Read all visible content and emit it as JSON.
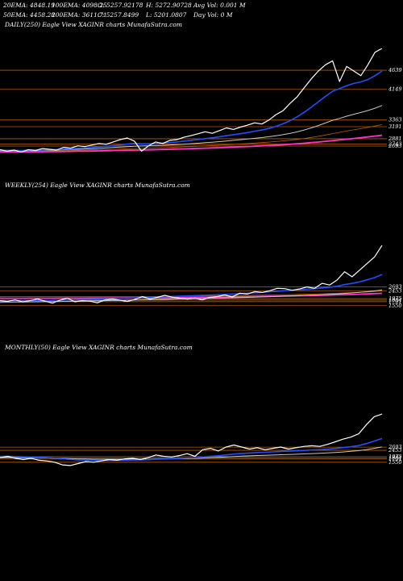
{
  "header": {
    "row1": [
      {
        "text": "20EMA: 4848.19"
      },
      {
        "text": "100EMA: 4098.25"
      },
      {
        "text": "O: 5257.92178"
      },
      {
        "text": "H: 5272.90728"
      },
      {
        "text": "Avg Vol: 0.001 M"
      }
    ],
    "row2": [
      {
        "text": "50EMA: 4458.28"
      },
      {
        "text": "200EMA: 3611.71"
      },
      {
        "text": "C: 5257.8499"
      },
      {
        "text": "L: 5201.0807"
      },
      {
        "text": "Day Vol: 0  M"
      }
    ]
  },
  "colors": {
    "background": "#000000",
    "price": "#ffffff",
    "ema20": "#1e50ff",
    "ema50": "#c8c8c8",
    "ema100": "#c06000",
    "ema200": "#ff33cc",
    "level": "#b85c00"
  },
  "chart_data": [
    {
      "type": "line",
      "title": "DAILY(250) Eagle   View  XAGINR charts MunafaSutra.com",
      "levels": [
        {
          "value": 4639,
          "label": "4639"
        },
        {
          "value": 4149,
          "label": "4149"
        },
        {
          "value": 3363,
          "label": "3363"
        },
        {
          "value": 3191,
          "label": "3191"
        },
        {
          "value": 2881,
          "label": "2881"
        },
        {
          "value": 2743,
          "label": "2743"
        },
        {
          "value": 2693,
          "label": "2693"
        }
      ],
      "ylim": [
        2300,
        5200
      ],
      "series": [
        {
          "key": "price",
          "values": [
            2600,
            2560,
            2590,
            2540,
            2600,
            2580,
            2630,
            2610,
            2590,
            2660,
            2640,
            2700,
            2680,
            2720,
            2760,
            2740,
            2800,
            2860,
            2900,
            2820,
            2560,
            2700,
            2800,
            2760,
            2840,
            2860,
            2920,
            2960,
            3010,
            3060,
            3020,
            3090,
            3160,
            3120,
            3180,
            3230,
            3290,
            3260,
            3360,
            3500,
            3600,
            3790,
            3960,
            4190,
            4420,
            4620,
            4780,
            4880,
            4350,
            4740,
            4620,
            4500,
            4780,
            5100,
            5200
          ]
        },
        {
          "key": "ema20",
          "values": [
            2590,
            2585,
            2585,
            2580,
            2585,
            2590,
            2595,
            2600,
            2605,
            2615,
            2625,
            2635,
            2645,
            2660,
            2675,
            2690,
            2705,
            2725,
            2745,
            2760,
            2750,
            2750,
            2760,
            2770,
            2785,
            2800,
            2820,
            2840,
            2860,
            2885,
            2905,
            2930,
            2960,
            2985,
            3010,
            3040,
            3075,
            3105,
            3145,
            3200,
            3265,
            3345,
            3445,
            3560,
            3690,
            3830,
            3970,
            4100,
            4170,
            4240,
            4300,
            4340,
            4400,
            4500,
            4620
          ]
        },
        {
          "key": "ema50",
          "values": [
            2580,
            2580,
            2580,
            2578,
            2580,
            2582,
            2585,
            2588,
            2592,
            2598,
            2604,
            2610,
            2618,
            2626,
            2636,
            2646,
            2656,
            2668,
            2680,
            2690,
            2695,
            2700,
            2706,
            2713,
            2722,
            2731,
            2742,
            2754,
            2766,
            2780,
            2794,
            2808,
            2824,
            2840,
            2857,
            2874,
            2893,
            2912,
            2933,
            2958,
            2985,
            3018,
            3058,
            3105,
            3160,
            3220,
            3285,
            3355,
            3405,
            3460,
            3510,
            3555,
            3605,
            3665,
            3735
          ]
        },
        {
          "key": "ema100",
          "values": [
            2560,
            2561,
            2562,
            2563,
            2565,
            2567,
            2569,
            2572,
            2575,
            2578,
            2582,
            2586,
            2590,
            2595,
            2600,
            2606,
            2612,
            2618,
            2625,
            2631,
            2636,
            2641,
            2647,
            2653,
            2659,
            2666,
            2673,
            2681,
            2689,
            2698,
            2707,
            2716,
            2726,
            2736,
            2747,
            2758,
            2770,
            2782,
            2795,
            2810,
            2826,
            2844,
            2865,
            2888,
            2915,
            2945,
            2978,
            3013,
            3045,
            3078,
            3110,
            3140,
            3172,
            3208,
            3245
          ]
        },
        {
          "key": "ema200",
          "values": [
            2540,
            2541,
            2542,
            2543,
            2544,
            2546,
            2548,
            2550,
            2552,
            2554,
            2557,
            2560,
            2563,
            2566,
            2569,
            2573,
            2577,
            2581,
            2585,
            2589,
            2593,
            2597,
            2601,
            2606,
            2611,
            2616,
            2621,
            2627,
            2633,
            2639,
            2645,
            2652,
            2659,
            2666,
            2674,
            2682,
            2690,
            2699,
            2708,
            2718,
            2729,
            2740,
            2753,
            2767,
            2782,
            2798,
            2815,
            2833,
            2851,
            2870,
            2889,
            2908,
            2928,
            2950,
            2972
          ]
        }
      ]
    },
    {
      "type": "line",
      "title": "WEEKLY(254) Eagle   View  XAGINR charts MunafaSutra.com",
      "levels": [
        {
          "value": 2693,
          "label": "2693"
        },
        {
          "value": 2453,
          "label": "2453"
        },
        {
          "value": 1975,
          "label": "1975"
        },
        {
          "value": 1884,
          "label": "1884"
        },
        {
          "value": 1791,
          "label": "1791"
        },
        {
          "value": 1550,
          "label": "1550"
        }
      ],
      "ylim": [
        1000,
        5400
      ],
      "series": [
        {
          "key": "price",
          "values": [
            1850,
            1800,
            1900,
            1780,
            1850,
            1950,
            1820,
            1700,
            1880,
            2000,
            1780,
            1850,
            1820,
            1720,
            1900,
            1950,
            1880,
            1800,
            1920,
            2100,
            1950,
            2050,
            2180,
            2060,
            2000,
            1950,
            2000,
            1900,
            2050,
            2100,
            2200,
            2080,
            2300,
            2250,
            2400,
            2350,
            2450,
            2600,
            2580,
            2480,
            2560,
            2680,
            2600,
            2900,
            2800,
            3100,
            3600,
            3300,
            3700,
            4100,
            4500,
            5200
          ]
        },
        {
          "key": "ema20",
          "values": [
            1800,
            1810,
            1818,
            1826,
            1836,
            1848,
            1858,
            1868,
            1880,
            1894,
            1906,
            1918,
            1930,
            1942,
            1956,
            1972,
            1986,
            2000,
            2016,
            2034,
            2050,
            2068,
            2088,
            2106,
            2122,
            2138,
            2156,
            2172,
            2190,
            2210,
            2232,
            2252,
            2276,
            2300,
            2328,
            2356,
            2386,
            2420,
            2452,
            2480,
            2510,
            2544,
            2576,
            2622,
            2668,
            2728,
            2822,
            2898,
            2992,
            3110,
            3250,
            3440
          ]
        },
        {
          "key": "ema50",
          "values": [
            1750,
            1756,
            1762,
            1768,
            1775,
            1782,
            1789,
            1796,
            1804,
            1812,
            1820,
            1828,
            1836,
            1844,
            1853,
            1862,
            1871,
            1880,
            1890,
            1900,
            1910,
            1920,
            1931,
            1942,
            1952,
            1962,
            1972,
            1982,
            1993,
            2004,
            2016,
            2028,
            2040,
            2053,
            2067,
            2081,
            2096,
            2112,
            2128,
            2144,
            2160,
            2177,
            2194,
            2214,
            2234,
            2258,
            2290,
            2320,
            2354,
            2394,
            2440,
            2498
          ]
        },
        {
          "key": "ema100",
          "values": [
            2100,
            2098,
            2096,
            2094,
            2092,
            2091,
            2090,
            2089,
            2088,
            2088,
            2088,
            2088,
            2088,
            2089,
            2090,
            2091,
            2093,
            2095,
            2097,
            2100,
            2103,
            2106,
            2110,
            2114,
            2118,
            2122,
            2127,
            2132,
            2137,
            2143,
            2149,
            2155,
            2162,
            2169,
            2177,
            2185,
            2194,
            2203,
            2213,
            2223,
            2234,
            2245,
            2257,
            2271,
            2285,
            2301,
            2320,
            2338,
            2359,
            2382,
            2408,
            2440
          ]
        },
        {
          "key": "ema200",
          "values": [
            2000,
            1999,
            1998,
            1998,
            1998,
            1998,
            1998,
            1999,
            2000,
            2001,
            2002,
            2003,
            2005,
            2007,
            2009,
            2011,
            2014,
            2017,
            2020,
            2023,
            2026,
            2030,
            2034,
            2038,
            2042,
            2046,
            2051,
            2056,
            2061,
            2066,
            2072,
            2078,
            2084,
            2091,
            2098,
            2105,
            2113,
            2121,
            2129,
            2138,
            2147,
            2157,
            2167,
            2178,
            2189,
            2201,
            2215,
            2229,
            2244,
            2260,
            2278,
            2298
          ]
        }
      ]
    },
    {
      "type": "line",
      "title": "MONTHLY(50) Eagle   View  XAGINR charts MunafaSutra.com",
      "levels": [
        {
          "value": 2693,
          "label": "2693"
        },
        {
          "value": 2453,
          "label": "2453"
        },
        {
          "value": 1975,
          "label": "1975"
        },
        {
          "value": 1884,
          "label": "1884"
        },
        {
          "value": 1791,
          "label": "1791"
        },
        {
          "value": 1550,
          "label": "1550"
        }
      ],
      "ylim": [
        500,
        6000
      ],
      "series": [
        {
          "key": "price",
          "values": [
            1900,
            2000,
            1850,
            1750,
            1850,
            1700,
            1650,
            1550,
            1350,
            1300,
            1450,
            1600,
            1550,
            1650,
            1750,
            1700,
            1800,
            1850,
            1750,
            1900,
            2100,
            2000,
            1950,
            2050,
            2200,
            2000,
            2500,
            2600,
            2400,
            2700,
            2850,
            2700,
            2550,
            2650,
            2500,
            2600,
            2700,
            2550,
            2650,
            2750,
            2800,
            2750,
            2900,
            3100,
            3300,
            3450,
            3700,
            4400,
            5000,
            5200
          ]
        },
        {
          "key": "ema20",
          "values": [
            2000,
            1995,
            1980,
            1958,
            1945,
            1922,
            1897,
            1864,
            1811,
            1762,
            1730,
            1715,
            1695,
            1690,
            1695,
            1693,
            1703,
            1718,
            1722,
            1742,
            1776,
            1797,
            1812,
            1835,
            1872,
            1884,
            1942,
            2004,
            2037,
            2099,
            2166,
            2217,
            2246,
            2284,
            2305,
            2333,
            2368,
            2386,
            2412,
            2444,
            2478,
            2503,
            2541,
            2593,
            2655,
            2724,
            2808,
            2960,
            3155,
            3349
          ]
        },
        {
          "key": "ema50",
          "values": [
            1900,
            1904,
            1902,
            1896,
            1894,
            1886,
            1876,
            1863,
            1842,
            1819,
            1804,
            1796,
            1786,
            1781,
            1780,
            1777,
            1778,
            1781,
            1780,
            1785,
            1797,
            1805,
            1811,
            1821,
            1836,
            1843,
            1869,
            1898,
            1918,
            1949,
            1985,
            2012,
            2033,
            2057,
            2075,
            2097,
            2120,
            2137,
            2158,
            2182,
            2207,
            2228,
            2255,
            2289,
            2329,
            2374,
            2426,
            2504,
            2602,
            2704
          ]
        }
      ]
    }
  ]
}
